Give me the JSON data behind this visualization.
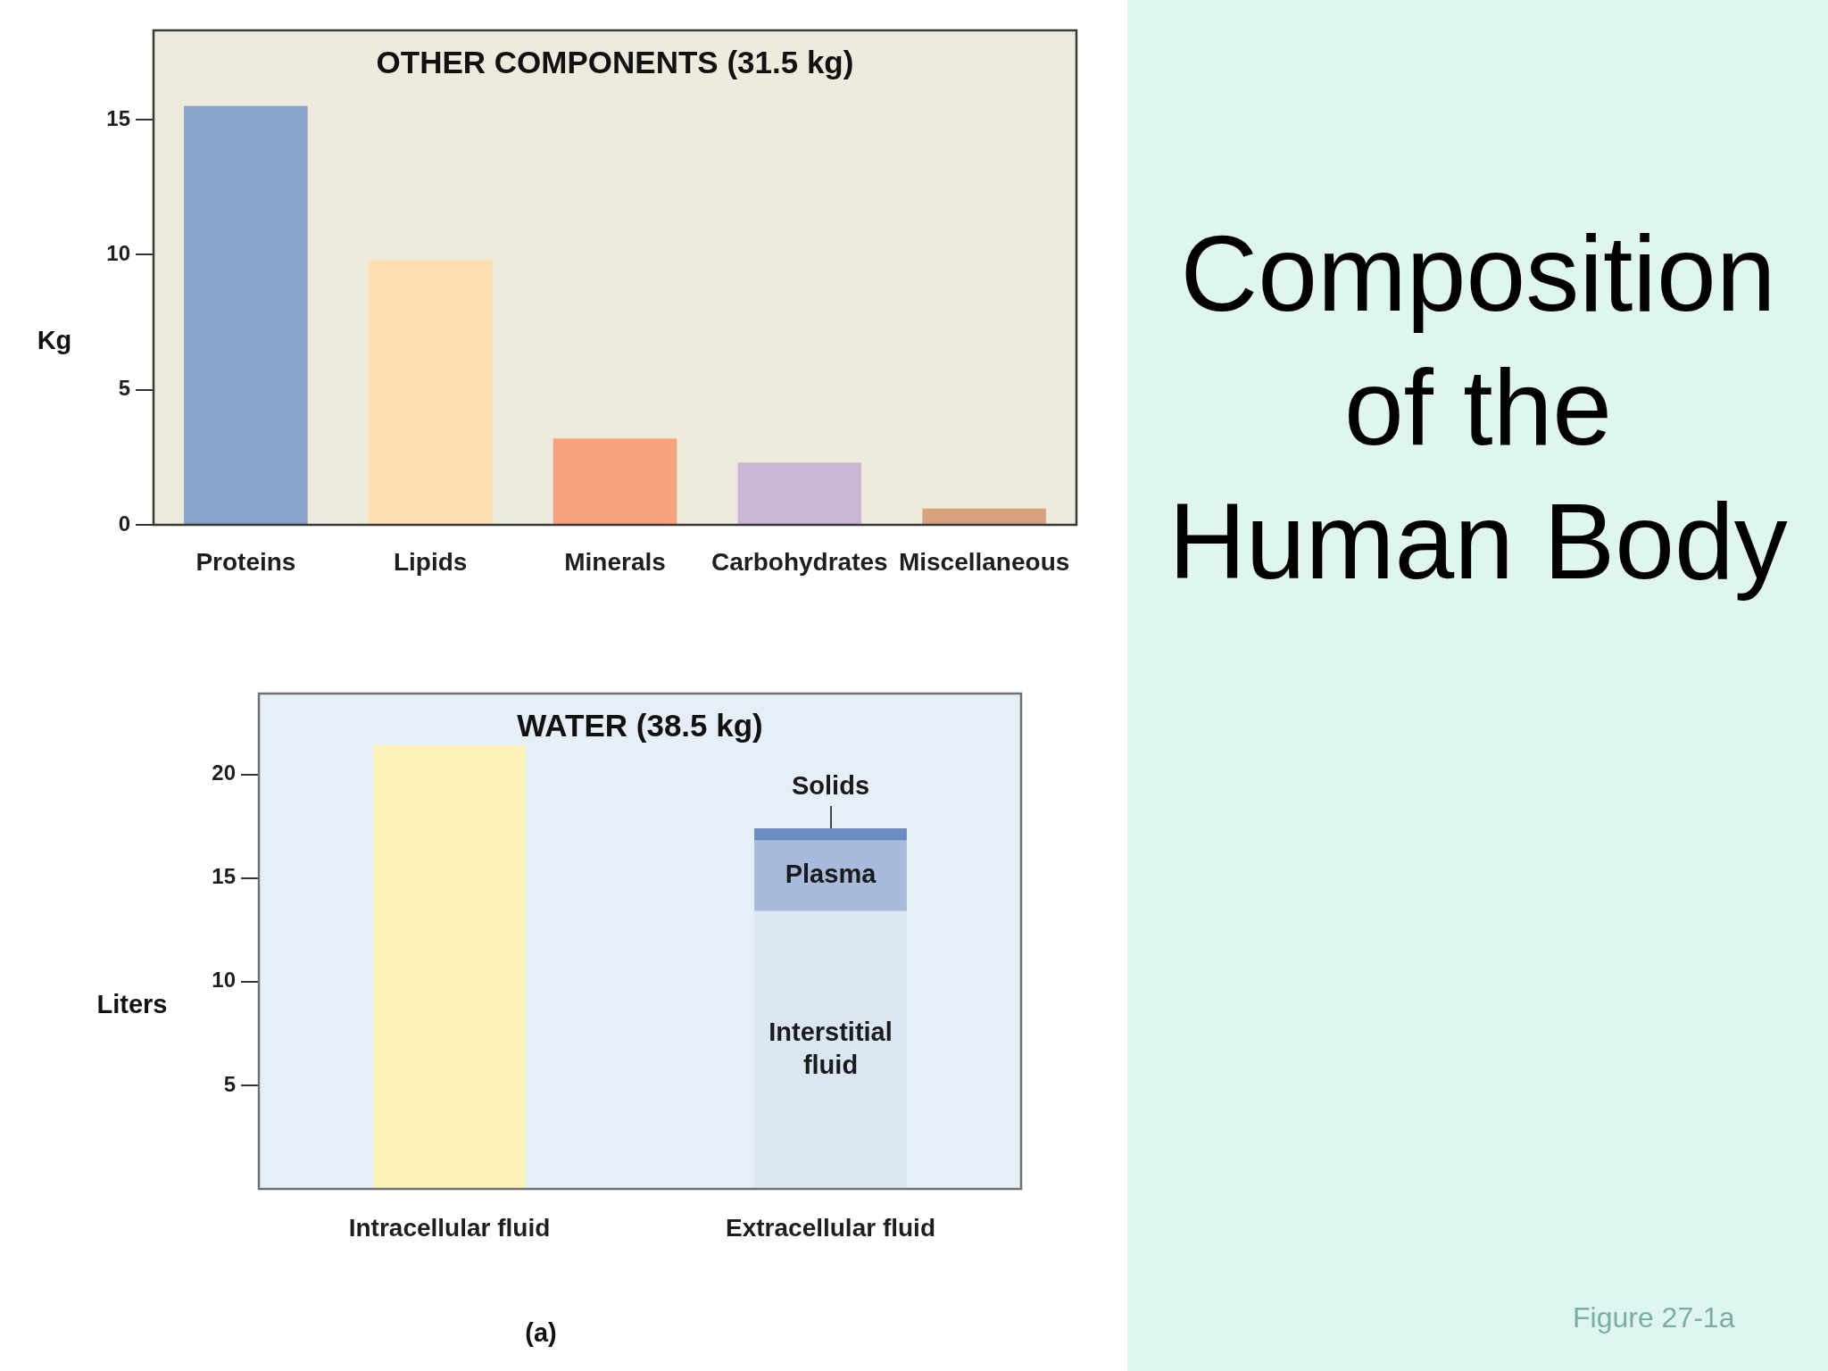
{
  "chart_data": [
    {
      "type": "bar",
      "title": "OTHER COMPONENTS (31.5 kg)",
      "ylabel": "Kg",
      "categories": [
        "Proteins",
        "Lipids",
        "Minerals",
        "Carbohydrates",
        "Miscellaneous"
      ],
      "values": [
        15.5,
        9.8,
        3.2,
        2.3,
        0.6
      ],
      "colors": [
        "#87a3c8",
        "#fde0b2",
        "#f9a37c",
        "#cbb6d6",
        "#d6a17c"
      ],
      "ylim": [
        0,
        18.3
      ],
      "yticks": [
        0,
        5,
        10,
        15
      ]
    },
    {
      "type": "bar",
      "title": "WATER (38.5 kg)",
      "ylabel": "Liters",
      "categories": [
        "Intracellular fluid",
        "Extracellular fluid"
      ],
      "stacked": true,
      "series": [
        {
          "color": "#fdf3b8",
          "values": [
            21.4,
            null
          ]
        },
        {
          "name": "Interstitial fluid",
          "color": "#dae7f3",
          "values": [
            null,
            13.4
          ]
        },
        {
          "name": "Plasma",
          "color": "#a7bcdc",
          "values": [
            null,
            3.4
          ]
        },
        {
          "name": "Solids",
          "color": "#6a8cc0",
          "values": [
            null,
            0.6
          ]
        }
      ],
      "ylim": [
        0,
        23.9
      ],
      "yticks": [
        5,
        10,
        15,
        20
      ],
      "annotations": [
        "(a)"
      ]
    },
    {
      "type": "other",
      "title": "Composition of the Human Body",
      "annotations": [
        "Figure 27-1a"
      ]
    }
  ]
}
